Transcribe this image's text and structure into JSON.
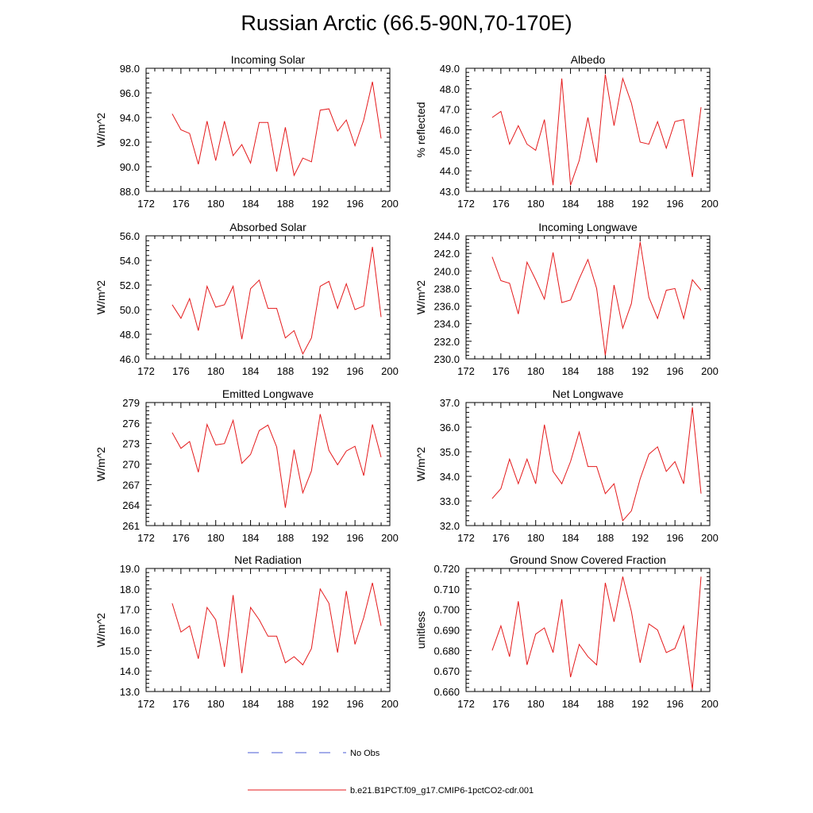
{
  "figure": {
    "title": "Russian Arctic (66.5-90N,70-170E)",
    "legend": [
      {
        "label": "No Obs",
        "color": "#4a5bd4",
        "style": "dashed"
      },
      {
        "label": "b.e21.B1PCT.f09_g17.CMIP6-1pctCO2-cdr.001",
        "color": "#e41a1c",
        "style": "solid"
      }
    ],
    "line_color": "#e41a1c"
  },
  "chart_data": [
    {
      "type": "line",
      "title": "Incoming Solar",
      "xlabel": "",
      "ylabel": "W/m^2",
      "xlim": [
        172,
        200
      ],
      "xticks": [
        "172",
        "176",
        "180",
        "184",
        "188",
        "192",
        "196",
        "200"
      ],
      "ylim": [
        88,
        98
      ],
      "yticks": [
        "88.0",
        "90.0",
        "92.0",
        "94.0",
        "96.0",
        "98.0"
      ],
      "x": [
        175,
        176,
        177,
        178,
        179,
        180,
        181,
        182,
        183,
        184,
        185,
        186,
        187,
        188,
        189,
        190,
        191,
        192,
        193,
        194,
        195,
        196,
        197,
        198,
        199
      ],
      "series": [
        {
          "values": [
            94.3,
            93.0,
            92.7,
            90.2,
            93.7,
            90.5,
            93.7,
            90.9,
            91.8,
            90.3,
            93.6,
            93.6,
            89.6,
            93.2,
            89.3,
            90.7,
            90.4,
            94.6,
            94.7,
            92.9,
            93.8,
            91.7,
            93.8,
            96.9,
            92.3
          ]
        }
      ]
    },
    {
      "type": "line",
      "title": "Albedo",
      "xlabel": "",
      "ylabel": "% reflected",
      "xlim": [
        172,
        200
      ],
      "xticks": [
        "172",
        "176",
        "180",
        "184",
        "188",
        "192",
        "196",
        "200"
      ],
      "ylim": [
        43,
        49
      ],
      "yticks": [
        "43.0",
        "44.0",
        "45.0",
        "46.0",
        "47.0",
        "48.0",
        "49.0"
      ],
      "x": [
        175,
        176,
        177,
        178,
        179,
        180,
        181,
        182,
        183,
        184,
        185,
        186,
        187,
        188,
        189,
        190,
        191,
        192,
        193,
        194,
        195,
        196,
        197,
        198,
        199
      ],
      "series": [
        {
          "values": [
            46.6,
            46.9,
            45.3,
            46.2,
            45.3,
            45.0,
            46.5,
            43.3,
            48.5,
            43.3,
            44.5,
            46.6,
            44.4,
            48.7,
            46.2,
            48.5,
            47.3,
            45.4,
            45.3,
            46.4,
            45.1,
            46.4,
            46.5,
            43.7,
            47.1
          ]
        }
      ]
    },
    {
      "type": "line",
      "title": "Absorbed Solar",
      "xlabel": "",
      "ylabel": "W/m^2",
      "xlim": [
        172,
        200
      ],
      "xticks": [
        "172",
        "176",
        "180",
        "184",
        "188",
        "192",
        "196",
        "200"
      ],
      "ylim": [
        46,
        56
      ],
      "yticks": [
        "46.0",
        "48.0",
        "50.0",
        "52.0",
        "54.0",
        "56.0"
      ],
      "x": [
        175,
        176,
        177,
        178,
        179,
        180,
        181,
        182,
        183,
        184,
        185,
        186,
        187,
        188,
        189,
        190,
        191,
        192,
        193,
        194,
        195,
        196,
        197,
        198,
        199
      ],
      "series": [
        {
          "values": [
            50.4,
            49.3,
            50.9,
            48.3,
            51.9,
            50.2,
            50.4,
            51.9,
            47.6,
            51.7,
            52.4,
            50.1,
            50.1,
            47.7,
            48.3,
            46.4,
            47.7,
            51.9,
            52.3,
            50.1,
            52.1,
            50.0,
            50.3,
            55.1,
            49.4
          ]
        }
      ]
    },
    {
      "type": "line",
      "title": "Incoming Longwave",
      "xlabel": "",
      "ylabel": "W/m^2",
      "xlim": [
        172,
        200
      ],
      "xticks": [
        "172",
        "176",
        "180",
        "184",
        "188",
        "192",
        "196",
        "200"
      ],
      "ylim": [
        230,
        244
      ],
      "yticks": [
        "230.0",
        "232.0",
        "234.0",
        "236.0",
        "238.0",
        "240.0",
        "242.0",
        "244.0"
      ],
      "x": [
        175,
        176,
        177,
        178,
        179,
        180,
        181,
        182,
        183,
        184,
        185,
        186,
        187,
        188,
        189,
        190,
        191,
        192,
        193,
        194,
        195,
        196,
        197,
        198,
        199
      ],
      "series": [
        {
          "values": [
            241.6,
            238.9,
            238.6,
            235.1,
            241.0,
            239.0,
            236.8,
            242.1,
            236.4,
            236.7,
            239.1,
            241.3,
            238.0,
            230.4,
            238.4,
            233.5,
            236.3,
            243.3,
            237.0,
            234.6,
            237.8,
            238.0,
            234.6,
            239.0,
            237.8
          ]
        }
      ]
    },
    {
      "type": "line",
      "title": "Emitted Longwave",
      "xlabel": "",
      "ylabel": "W/m^2",
      "xlim": [
        172,
        200
      ],
      "xticks": [
        "172",
        "176",
        "180",
        "184",
        "188",
        "192",
        "196",
        "200"
      ],
      "ylim": [
        261,
        279
      ],
      "yticks": [
        "261",
        "264",
        "267",
        "270",
        "273",
        "276",
        "279"
      ],
      "x": [
        175,
        176,
        177,
        178,
        179,
        180,
        181,
        182,
        183,
        184,
        185,
        186,
        187,
        188,
        189,
        190,
        191,
        192,
        193,
        194,
        195,
        196,
        197,
        198,
        199
      ],
      "series": [
        {
          "values": [
            274.6,
            272.3,
            273.3,
            268.8,
            275.8,
            272.8,
            273.0,
            276.4,
            270.1,
            271.4,
            274.9,
            275.7,
            272.5,
            263.6,
            272.1,
            265.8,
            269.0,
            277.3,
            272.0,
            269.9,
            271.9,
            272.6,
            268.3,
            275.8,
            271.0
          ]
        }
      ]
    },
    {
      "type": "line",
      "title": "Net Longwave",
      "xlabel": "",
      "ylabel": "W/m^2",
      "xlim": [
        172,
        200
      ],
      "xticks": [
        "172",
        "176",
        "180",
        "184",
        "188",
        "192",
        "196",
        "200"
      ],
      "ylim": [
        32,
        37
      ],
      "yticks": [
        "32.0",
        "33.0",
        "34.0",
        "35.0",
        "36.0",
        "37.0"
      ],
      "x": [
        175,
        176,
        177,
        178,
        179,
        180,
        181,
        182,
        183,
        184,
        185,
        186,
        187,
        188,
        189,
        190,
        191,
        192,
        193,
        194,
        195,
        196,
        197,
        198,
        199
      ],
      "series": [
        {
          "values": [
            33.1,
            33.5,
            34.7,
            33.7,
            34.7,
            33.7,
            36.1,
            34.2,
            33.7,
            34.6,
            35.8,
            34.4,
            34.4,
            33.3,
            33.7,
            32.2,
            32.6,
            33.9,
            34.9,
            35.2,
            34.2,
            34.6,
            33.7,
            36.8,
            33.3
          ]
        }
      ]
    },
    {
      "type": "line",
      "title": "Net Radiation",
      "xlabel": "",
      "ylabel": "W/m^2",
      "xlim": [
        172,
        200
      ],
      "xticks": [
        "172",
        "176",
        "180",
        "184",
        "188",
        "192",
        "196",
        "200"
      ],
      "ylim": [
        13,
        19
      ],
      "yticks": [
        "13.0",
        "14.0",
        "15.0",
        "16.0",
        "17.0",
        "18.0",
        "19.0"
      ],
      "x": [
        175,
        176,
        177,
        178,
        179,
        180,
        181,
        182,
        183,
        184,
        185,
        186,
        187,
        188,
        189,
        190,
        191,
        192,
        193,
        194,
        195,
        196,
        197,
        198,
        199
      ],
      "series": [
        {
          "values": [
            17.3,
            15.9,
            16.2,
            14.6,
            17.1,
            16.5,
            14.2,
            17.7,
            13.9,
            17.1,
            16.5,
            15.7,
            15.7,
            14.4,
            14.7,
            14.3,
            15.1,
            18.0,
            17.3,
            14.9,
            17.9,
            15.3,
            16.6,
            18.3,
            16.2
          ]
        }
      ]
    },
    {
      "type": "line",
      "title": "Ground Snow Covered Fraction",
      "xlabel": "",
      "ylabel": "unitless",
      "xlim": [
        172,
        200
      ],
      "xticks": [
        "172",
        "176",
        "180",
        "184",
        "188",
        "192",
        "196",
        "200"
      ],
      "ylim": [
        0.66,
        0.72
      ],
      "yticks": [
        "0.660",
        "0.670",
        "0.680",
        "0.690",
        "0.700",
        "0.710",
        "0.720"
      ],
      "x": [
        175,
        176,
        177,
        178,
        179,
        180,
        181,
        182,
        183,
        184,
        185,
        186,
        187,
        188,
        189,
        190,
        191,
        192,
        193,
        194,
        195,
        196,
        197,
        198,
        199
      ],
      "series": [
        {
          "values": [
            0.68,
            0.692,
            0.677,
            0.704,
            0.673,
            0.688,
            0.691,
            0.679,
            0.705,
            0.667,
            0.683,
            0.677,
            0.673,
            0.713,
            0.694,
            0.716,
            0.699,
            0.674,
            0.693,
            0.69,
            0.679,
            0.681,
            0.692,
            0.661,
            0.716
          ]
        }
      ]
    }
  ]
}
